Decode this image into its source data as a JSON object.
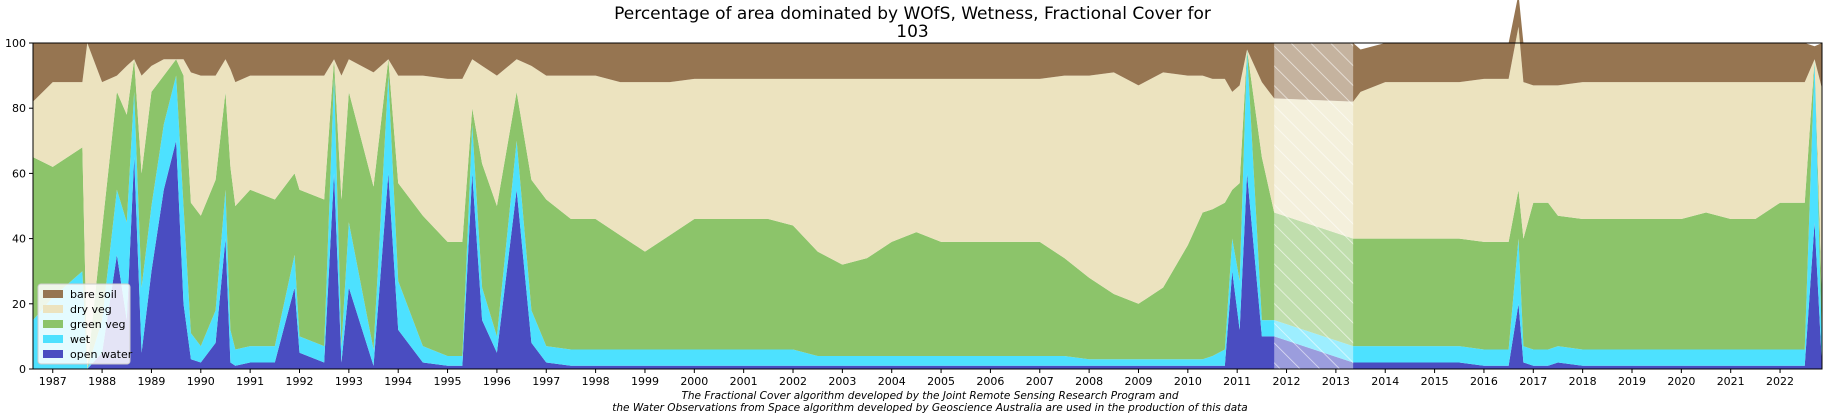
{
  "chart_data": {
    "type": "area",
    "title_line1": "Percentage of area dominated by WOfS, Wetness, Fractional Cover for",
    "title_line2": "103",
    "caption_line1": "The Fractional Cover algorithm developed by the Joint Remote Sensing Research Program and",
    "caption_line2": "the Water Observations from Space algorithm developed by Geoscience Australia are used in the production of this data",
    "xlim": [
      1986.6,
      2022.85
    ],
    "ylim": [
      0,
      100
    ],
    "yticks": [
      0,
      20,
      40,
      60,
      80,
      100
    ],
    "xtick_labels": [
      "1987",
      "1988",
      "1989",
      "1990",
      "1991",
      "1992",
      "1993",
      "1994",
      "1995",
      "1996",
      "1997",
      "1998",
      "1999",
      "2000",
      "2001",
      "2002",
      "2003",
      "2004",
      "2005",
      "2006",
      "2007",
      "2008",
      "2009",
      "2010",
      "2011",
      "2012",
      "2013",
      "2014",
      "2015",
      "2016",
      "2017",
      "2018",
      "2019",
      "2020",
      "2021",
      "2022"
    ],
    "no_data_band": [
      2011.75,
      2013.35
    ],
    "legend_position": "lower-left",
    "series": [
      {
        "name": "open water",
        "color": "#4a4dc1"
      },
      {
        "name": "wet",
        "color": "#4de1ff"
      },
      {
        "name": "green veg",
        "color": "#8cc46a"
      },
      {
        "name": "dry veg",
        "color": "#ece3bf"
      },
      {
        "name": "bare soil",
        "color": "#967551"
      }
    ],
    "x": [
      1986.6,
      1987.0,
      1987.6,
      1987.7,
      1988.0,
      1988.3,
      1988.5,
      1988.65,
      1988.8,
      1989.0,
      1989.25,
      1989.5,
      1989.65,
      1989.8,
      1990.0,
      1990.3,
      1990.5,
      1990.6,
      1990.7,
      1991.0,
      1991.5,
      1991.9,
      1992.0,
      1992.5,
      1992.7,
      1992.85,
      1993.0,
      1993.5,
      1993.8,
      1994.0,
      1994.5,
      1995.0,
      1995.3,
      1995.5,
      1995.7,
      1996.0,
      1996.4,
      1996.7,
      1997.0,
      1997.5,
      1998.0,
      1998.5,
      1999.0,
      1999.5,
      2000.0,
      2000.5,
      2001.0,
      2001.5,
      2002.0,
      2002.5,
      2003.0,
      2003.5,
      2004.0,
      2004.5,
      2005.0,
      2005.5,
      2006.0,
      2006.5,
      2007.0,
      2007.5,
      2008.0,
      2008.5,
      2009.0,
      2009.5,
      2010.0,
      2010.3,
      2010.5,
      2010.75,
      2010.9,
      2011.05,
      2011.2,
      2011.5,
      2011.75,
      2013.35,
      2013.5,
      2014.0,
      2014.5,
      2015.0,
      2015.5,
      2016.0,
      2016.5,
      2016.7,
      2016.8,
      2017.0,
      2017.3,
      2017.5,
      2018.0,
      2018.5,
      2019.0,
      2019.5,
      2020.0,
      2020.5,
      2021.0,
      2021.5,
      2022.0,
      2022.5,
      2022.7,
      2022.85
    ],
    "open_water": [
      0,
      0,
      0,
      0,
      5,
      35,
      15,
      65,
      5,
      30,
      55,
      70,
      20,
      3,
      2,
      8,
      40,
      2,
      1,
      2,
      2,
      25,
      5,
      2,
      60,
      2,
      25,
      1,
      60,
      12,
      2,
      1,
      1,
      60,
      15,
      5,
      55,
      8,
      2,
      1,
      1,
      1,
      1,
      1,
      1,
      1,
      1,
      1,
      1,
      1,
      1,
      1,
      1,
      1,
      1,
      1,
      1,
      1,
      1,
      1,
      1,
      1,
      1,
      1,
      1,
      1,
      1,
      1,
      30,
      12,
      60,
      10,
      10,
      2,
      2,
      2,
      2,
      2,
      2,
      1,
      1,
      20,
      2,
      1,
      1,
      2,
      1,
      1,
      1,
      1,
      1,
      1,
      1,
      1,
      1,
      1,
      45,
      1
    ],
    "wet": [
      15,
      22,
      30,
      0,
      10,
      20,
      30,
      20,
      20,
      20,
      20,
      20,
      30,
      8,
      5,
      10,
      15,
      10,
      5,
      5,
      5,
      10,
      5,
      5,
      30,
      5,
      20,
      5,
      30,
      15,
      5,
      3,
      3,
      15,
      10,
      5,
      15,
      10,
      5,
      5,
      5,
      5,
      5,
      5,
      5,
      5,
      5,
      5,
      5,
      3,
      3,
      3,
      3,
      3,
      3,
      3,
      3,
      3,
      3,
      3,
      2,
      2,
      2,
      2,
      2,
      2,
      3,
      5,
      10,
      15,
      38,
      5,
      5,
      5,
      5,
      5,
      5,
      5,
      5,
      5,
      5,
      20,
      5,
      5,
      5,
      5,
      5,
      5,
      5,
      5,
      5,
      5,
      5,
      5,
      5,
      5,
      50,
      5
    ],
    "green_veg": [
      50,
      40,
      38,
      0,
      28,
      30,
      33,
      10,
      35,
      35,
      15,
      5,
      40,
      40,
      40,
      40,
      30,
      50,
      44,
      48,
      45,
      25,
      45,
      45,
      5,
      45,
      40,
      50,
      5,
      30,
      40,
      35,
      35,
      5,
      38,
      40,
      15,
      40,
      45,
      40,
      40,
      35,
      30,
      35,
      40,
      40,
      40,
      40,
      38,
      32,
      28,
      30,
      35,
      38,
      35,
      35,
      35,
      35,
      35,
      30,
      25,
      20,
      17,
      22,
      35,
      45,
      45,
      45,
      15,
      30,
      0,
      50,
      33,
      33,
      33,
      33,
      33,
      33,
      33,
      33,
      33,
      15,
      33,
      45,
      45,
      40,
      40,
      40,
      40,
      40,
      40,
      42,
      40,
      40,
      45,
      45,
      0,
      15
    ],
    "dry_veg": [
      17,
      26,
      20,
      100,
      45,
      5,
      15,
      0,
      30,
      8,
      5,
      0,
      5,
      40,
      43,
      32,
      10,
      30,
      38,
      35,
      38,
      30,
      35,
      38,
      0,
      38,
      10,
      35,
      0,
      33,
      43,
      50,
      50,
      15,
      30,
      40,
      10,
      35,
      38,
      44,
      44,
      47,
      52,
      47,
      43,
      43,
      43,
      43,
      45,
      53,
      57,
      55,
      50,
      47,
      50,
      50,
      50,
      50,
      50,
      56,
      62,
      68,
      67,
      66,
      52,
      42,
      40,
      38,
      30,
      30,
      0,
      23,
      35,
      42,
      45,
      48,
      48,
      48,
      48,
      50,
      50,
      50,
      48,
      36,
      36,
      40,
      42,
      42,
      42,
      42,
      42,
      40,
      42,
      42,
      37,
      37,
      0,
      65
    ],
    "bare_soil": [
      18,
      12,
      12,
      0,
      12,
      10,
      7,
      5,
      10,
      7,
      5,
      5,
      5,
      9,
      10,
      10,
      5,
      8,
      12,
      10,
      10,
      10,
      10,
      10,
      5,
      10,
      5,
      9,
      5,
      10,
      10,
      11,
      11,
      5,
      7,
      10,
      5,
      7,
      10,
      10,
      10,
      12,
      12,
      12,
      11,
      11,
      11,
      11,
      11,
      11,
      11,
      11,
      11,
      11,
      11,
      11,
      11,
      11,
      11,
      10,
      10,
      9,
      13,
      9,
      10,
      10,
      11,
      11,
      15,
      13,
      2,
      12,
      17,
      18,
      13,
      12,
      12,
      12,
      12,
      11,
      11,
      10,
      12,
      13,
      13,
      13,
      12,
      12,
      12,
      12,
      12,
      12,
      12,
      12,
      12,
      12,
      4,
      14
    ]
  }
}
